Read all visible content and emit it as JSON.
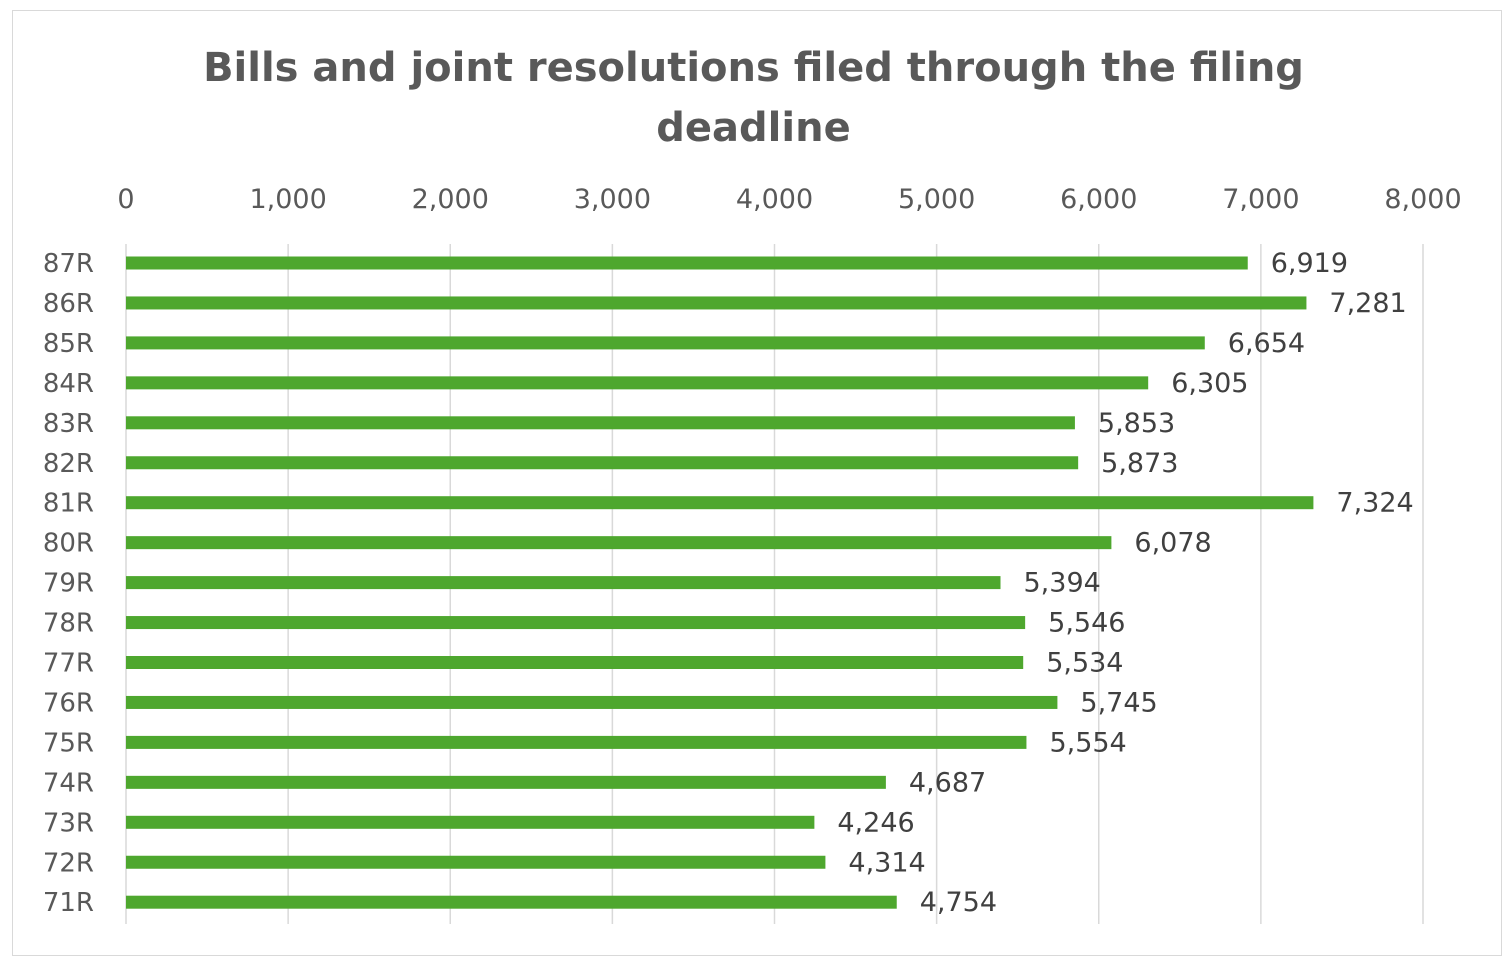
{
  "chart_data": {
    "type": "bar",
    "orientation": "horizontal",
    "title": "Bills and joint resolutions filed through the filing deadline",
    "xlabel": "",
    "ylabel": "",
    "xlim": [
      0,
      8000
    ],
    "xticks": [
      "0",
      "1,000",
      "2,000",
      "3,000",
      "4,000",
      "5,000",
      "6,000",
      "7,000",
      "8,000"
    ],
    "tick_positions": [
      0,
      1000,
      2000,
      3000,
      4000,
      5000,
      6000,
      7000,
      8000
    ],
    "axis_position": "top",
    "grid": true,
    "legend": "none",
    "bar_color": "#4ea72e",
    "categories": [
      "87R",
      "86R",
      "85R",
      "84R",
      "83R",
      "82R",
      "81R",
      "80R",
      "79R",
      "78R",
      "77R",
      "76R",
      "75R",
      "74R",
      "73R",
      "72R",
      "71R"
    ],
    "values": [
      6919,
      7281,
      6654,
      6305,
      5853,
      5873,
      7324,
      6078,
      5394,
      5546,
      5534,
      5745,
      5554,
      4687,
      4246,
      4314,
      4754
    ],
    "value_labels": [
      "6,919",
      "7,281",
      "6,654",
      "6,305",
      "5,853",
      "5,873",
      "7,324",
      "6,078",
      "5,394",
      "5,546",
      "5,534",
      "5,745",
      "5,554",
      "4,687",
      "4,246",
      "4,314",
      "4,754"
    ]
  }
}
